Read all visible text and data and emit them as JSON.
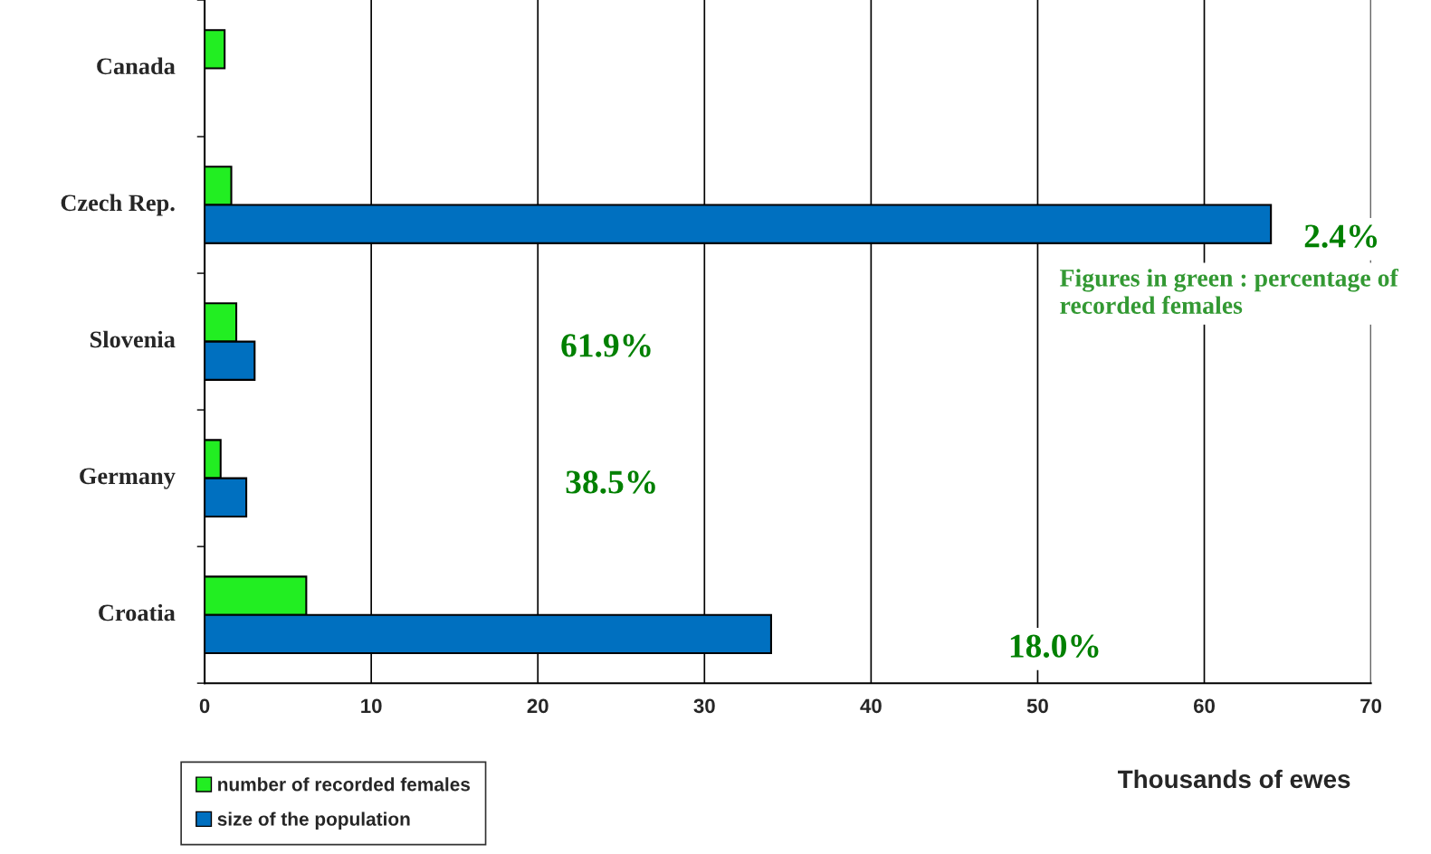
{
  "chart_data": {
    "type": "bar",
    "orientation": "horizontal",
    "xlabel": "Thousands of ewes",
    "categories": [
      "Canada",
      "Czech Rep.",
      "Slovenia",
      "Germany",
      "Croatia"
    ],
    "series": [
      {
        "name": "number of recorded females",
        "color": "#22ee22",
        "values": [
          1.2,
          1.6,
          1.9,
          0.96,
          6.1
        ]
      },
      {
        "name": "size of the population",
        "color": "#0070c0",
        "values": [
          null,
          64,
          3.0,
          2.5,
          34
        ]
      }
    ],
    "xlim": [
      0,
      70
    ],
    "xticks": [
      0,
      10,
      20,
      30,
      40,
      50,
      60,
      70
    ],
    "grid": "x",
    "legend": "bottom left",
    "annotations": [
      "2.4%",
      "61.9%",
      "38.5%",
      "18.0%",
      "Figures in green : percentage of recorded females"
    ]
  }
}
